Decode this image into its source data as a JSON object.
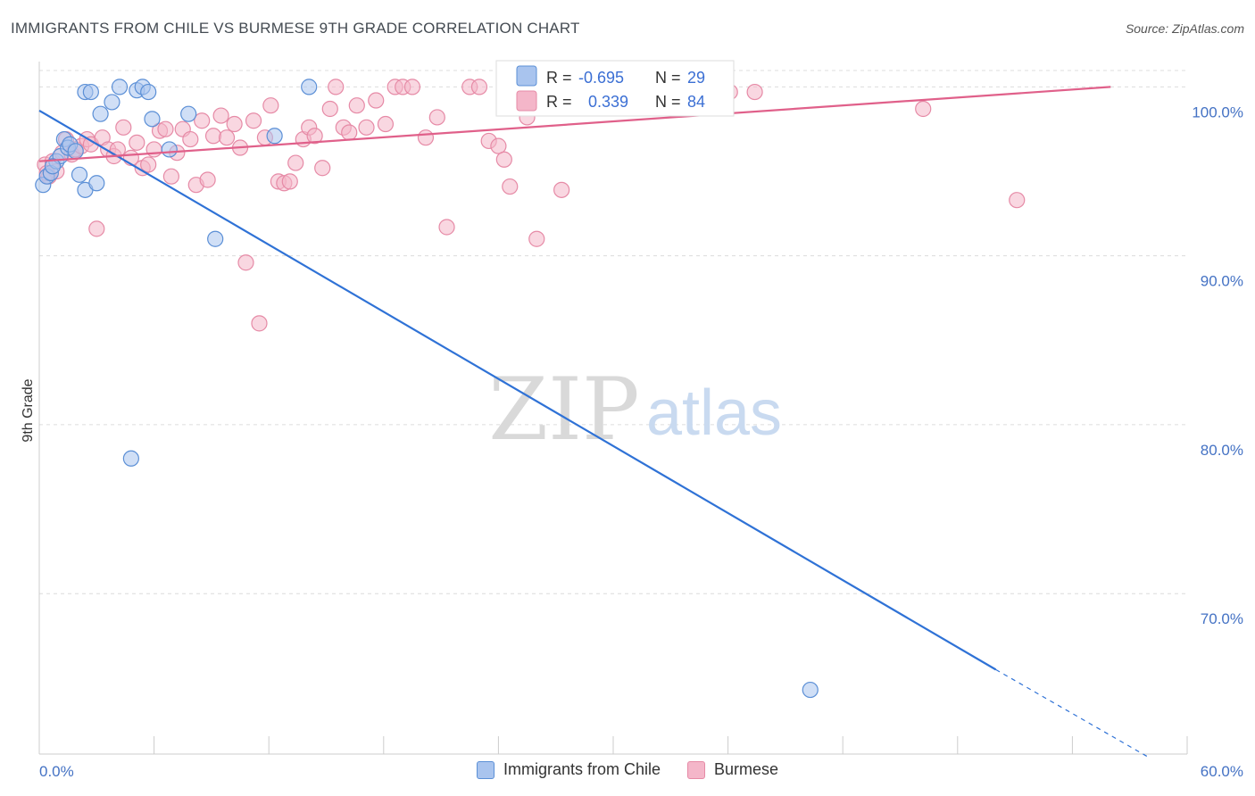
{
  "header": {
    "title": "IMMIGRANTS FROM CHILE VS BURMESE 9TH GRADE CORRELATION CHART",
    "source": "Source: ZipAtlas.com"
  },
  "watermark": {
    "zip": "ZIP",
    "atlas": "atlas"
  },
  "colors": {
    "chile_fill": "#a9c4ee",
    "chile_stroke": "#5b8fd6",
    "chile_line": "#2f72d6",
    "burmese_fill": "#f4b6c9",
    "burmese_stroke": "#e68aa6",
    "burmese_line": "#e0608a",
    "tick_color": "#4472c4",
    "grid": "#dcdcdc"
  },
  "legend": {
    "r_label": "R =",
    "n_label": "N =",
    "rows": [
      {
        "r": "-0.695",
        "n": "29"
      },
      {
        "r": "0.339",
        "n": "84"
      }
    ]
  },
  "chart_data": {
    "type": "scatter",
    "title": "IMMIGRANTS FROM CHILE VS BURMESE 9TH GRADE CORRELATION CHART",
    "xlabel": "",
    "ylabel": "9th Grade",
    "xlim": [
      0,
      60
    ],
    "ylim": [
      60.5,
      101.5
    ],
    "x_tick_labels": [
      "0.0%",
      "60.0%"
    ],
    "y_ticks": [
      100,
      90,
      80,
      70
    ],
    "y_tick_labels": [
      "100.0%",
      "90.0%",
      "80.0%",
      "70.0%"
    ],
    "grid": true,
    "legend_position": "top-center",
    "series": [
      {
        "name": "Immigrants from Chile",
        "points": [
          [
            0.2,
            94.2
          ],
          [
            0.4,
            94.7
          ],
          [
            0.6,
            94.9
          ],
          [
            0.9,
            95.6
          ],
          [
            1.1,
            95.9
          ],
          [
            1.3,
            96.9
          ],
          [
            1.5,
            96.4
          ],
          [
            1.6,
            96.6
          ],
          [
            1.9,
            96.2
          ],
          [
            2.1,
            94.8
          ],
          [
            2.4,
            93.9
          ],
          [
            2.4,
            99.7
          ],
          [
            2.7,
            99.7
          ],
          [
            3.0,
            94.3
          ],
          [
            3.2,
            98.4
          ],
          [
            3.8,
            99.1
          ],
          [
            4.2,
            100.0
          ],
          [
            4.8,
            78.0
          ],
          [
            5.1,
            99.8
          ],
          [
            5.4,
            100.0
          ],
          [
            5.7,
            99.7
          ],
          [
            5.9,
            98.1
          ],
          [
            6.8,
            96.3
          ],
          [
            7.8,
            98.4
          ],
          [
            9.2,
            91.0
          ],
          [
            12.3,
            97.1
          ],
          [
            14.1,
            100.0
          ],
          [
            40.3,
            64.3
          ],
          [
            0.7,
            95.3
          ]
        ],
        "trend": {
          "x": [
            0,
            50
          ],
          "y": [
            98.6,
            65.5
          ]
        },
        "trend_extension": {
          "x": [
            50,
            58
          ],
          "y": [
            65.5,
            60.3
          ]
        }
      },
      {
        "name": "Burmese",
        "points": [
          [
            0.3,
            95.4
          ],
          [
            0.5,
            94.7
          ],
          [
            0.7,
            95.6
          ],
          [
            0.9,
            95.0
          ],
          [
            1.2,
            96.1
          ],
          [
            1.4,
            96.9
          ],
          [
            1.7,
            96.0
          ],
          [
            1.9,
            96.3
          ],
          [
            2.2,
            96.5
          ],
          [
            2.5,
            96.9
          ],
          [
            2.7,
            96.6
          ],
          [
            3.0,
            91.6
          ],
          [
            3.3,
            97.0
          ],
          [
            3.6,
            96.3
          ],
          [
            3.9,
            95.9
          ],
          [
            4.1,
            96.3
          ],
          [
            4.4,
            97.6
          ],
          [
            4.8,
            95.8
          ],
          [
            5.1,
            96.7
          ],
          [
            5.4,
            95.2
          ],
          [
            5.7,
            95.4
          ],
          [
            6.0,
            96.3
          ],
          [
            6.3,
            97.4
          ],
          [
            6.6,
            97.5
          ],
          [
            6.9,
            94.7
          ],
          [
            7.2,
            96.1
          ],
          [
            7.5,
            97.5
          ],
          [
            7.9,
            96.9
          ],
          [
            8.2,
            94.2
          ],
          [
            8.5,
            98.0
          ],
          [
            8.8,
            94.5
          ],
          [
            9.1,
            97.1
          ],
          [
            9.5,
            98.3
          ],
          [
            9.8,
            97.0
          ],
          [
            10.2,
            97.8
          ],
          [
            10.5,
            96.4
          ],
          [
            10.8,
            89.6
          ],
          [
            11.2,
            98.0
          ],
          [
            11.5,
            86.0
          ],
          [
            11.8,
            97.0
          ],
          [
            12.1,
            98.9
          ],
          [
            12.5,
            94.4
          ],
          [
            12.8,
            94.3
          ],
          [
            13.1,
            94.4
          ],
          [
            13.4,
            95.5
          ],
          [
            13.8,
            96.9
          ],
          [
            14.1,
            97.6
          ],
          [
            14.4,
            97.1
          ],
          [
            14.8,
            95.2
          ],
          [
            15.2,
            98.7
          ],
          [
            15.5,
            100.0
          ],
          [
            15.9,
            97.6
          ],
          [
            16.2,
            97.3
          ],
          [
            16.6,
            98.9
          ],
          [
            17.1,
            97.6
          ],
          [
            17.6,
            99.2
          ],
          [
            18.1,
            97.8
          ],
          [
            18.6,
            100.0
          ],
          [
            19.0,
            100.0
          ],
          [
            19.5,
            100.0
          ],
          [
            20.2,
            97.0
          ],
          [
            20.8,
            98.2
          ],
          [
            21.3,
            91.7
          ],
          [
            22.5,
            100.0
          ],
          [
            23.0,
            100.0
          ],
          [
            23.5,
            96.8
          ],
          [
            24.0,
            96.5
          ],
          [
            24.3,
            95.7
          ],
          [
            24.6,
            94.1
          ],
          [
            25.5,
            98.2
          ],
          [
            26.0,
            91.0
          ],
          [
            26.3,
            98.9
          ],
          [
            27.3,
            93.9
          ],
          [
            28.0,
            100.0
          ],
          [
            29.2,
            100.0
          ],
          [
            30.2,
            99.3
          ],
          [
            31.0,
            100.0
          ],
          [
            33.0,
            99.6
          ],
          [
            35.1,
            100.0
          ],
          [
            36.1,
            99.7
          ],
          [
            37.4,
            99.7
          ],
          [
            46.2,
            98.7
          ],
          [
            51.1,
            93.3
          ],
          [
            0.4,
            94.9
          ]
        ],
        "trend": {
          "x": [
            0,
            56
          ],
          "y": [
            95.6,
            100.0
          ]
        }
      }
    ]
  }
}
